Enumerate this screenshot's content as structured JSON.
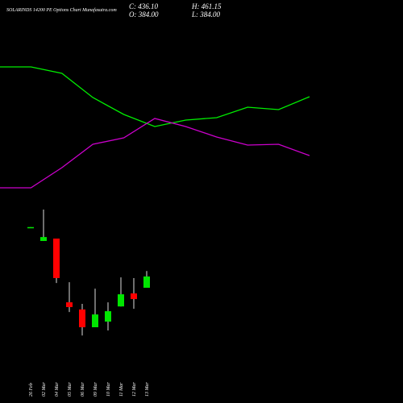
{
  "chart_data": [
    {
      "type": "candlestick",
      "title": "SOLARINDS 14200 PE Options Chart Munafasutra.com",
      "ohlc_header": [
        "C: 436.10",
        "H: 461.15",
        "O: 384.00",
        "L: 384.00"
      ],
      "categories": [
        "26 Feb",
        "02 Mar",
        "04 Mar",
        "05 Mar",
        "06 Mar",
        "09 Mar",
        "10 Mar",
        "11 Mar",
        "12 Mar",
        "13 Mar"
      ],
      "open": [
        662,
        600,
        611,
        317,
        284,
        202,
        228,
        298,
        358,
        384
      ],
      "high": [
        664,
        745,
        611,
        410,
        310,
        380,
        317,
        432,
        429,
        461.15
      ],
      "low": [
        662,
        600,
        406,
        272,
        164,
        202,
        187,
        298,
        287,
        384
      ],
      "close": [
        664,
        618,
        429,
        295,
        202,
        261,
        276,
        354,
        332,
        436.1
      ],
      "up_color": "#00e600",
      "down_color": "#ff0000",
      "ylim": [
        150,
        782
      ]
    },
    {
      "type": "line",
      "series": [
        {
          "color": "#00ee00",
          "values": [
            167,
            167,
            159,
            129,
            108,
            93,
            101,
            104,
            117,
            114,
            130
          ]
        },
        {
          "color": "#cc00cc",
          "values": [
            17,
            17,
            42,
            71,
            79,
            103,
            93,
            80,
            70,
            71,
            57
          ]
        }
      ],
      "ylim": [
        0,
        200
      ]
    }
  ]
}
